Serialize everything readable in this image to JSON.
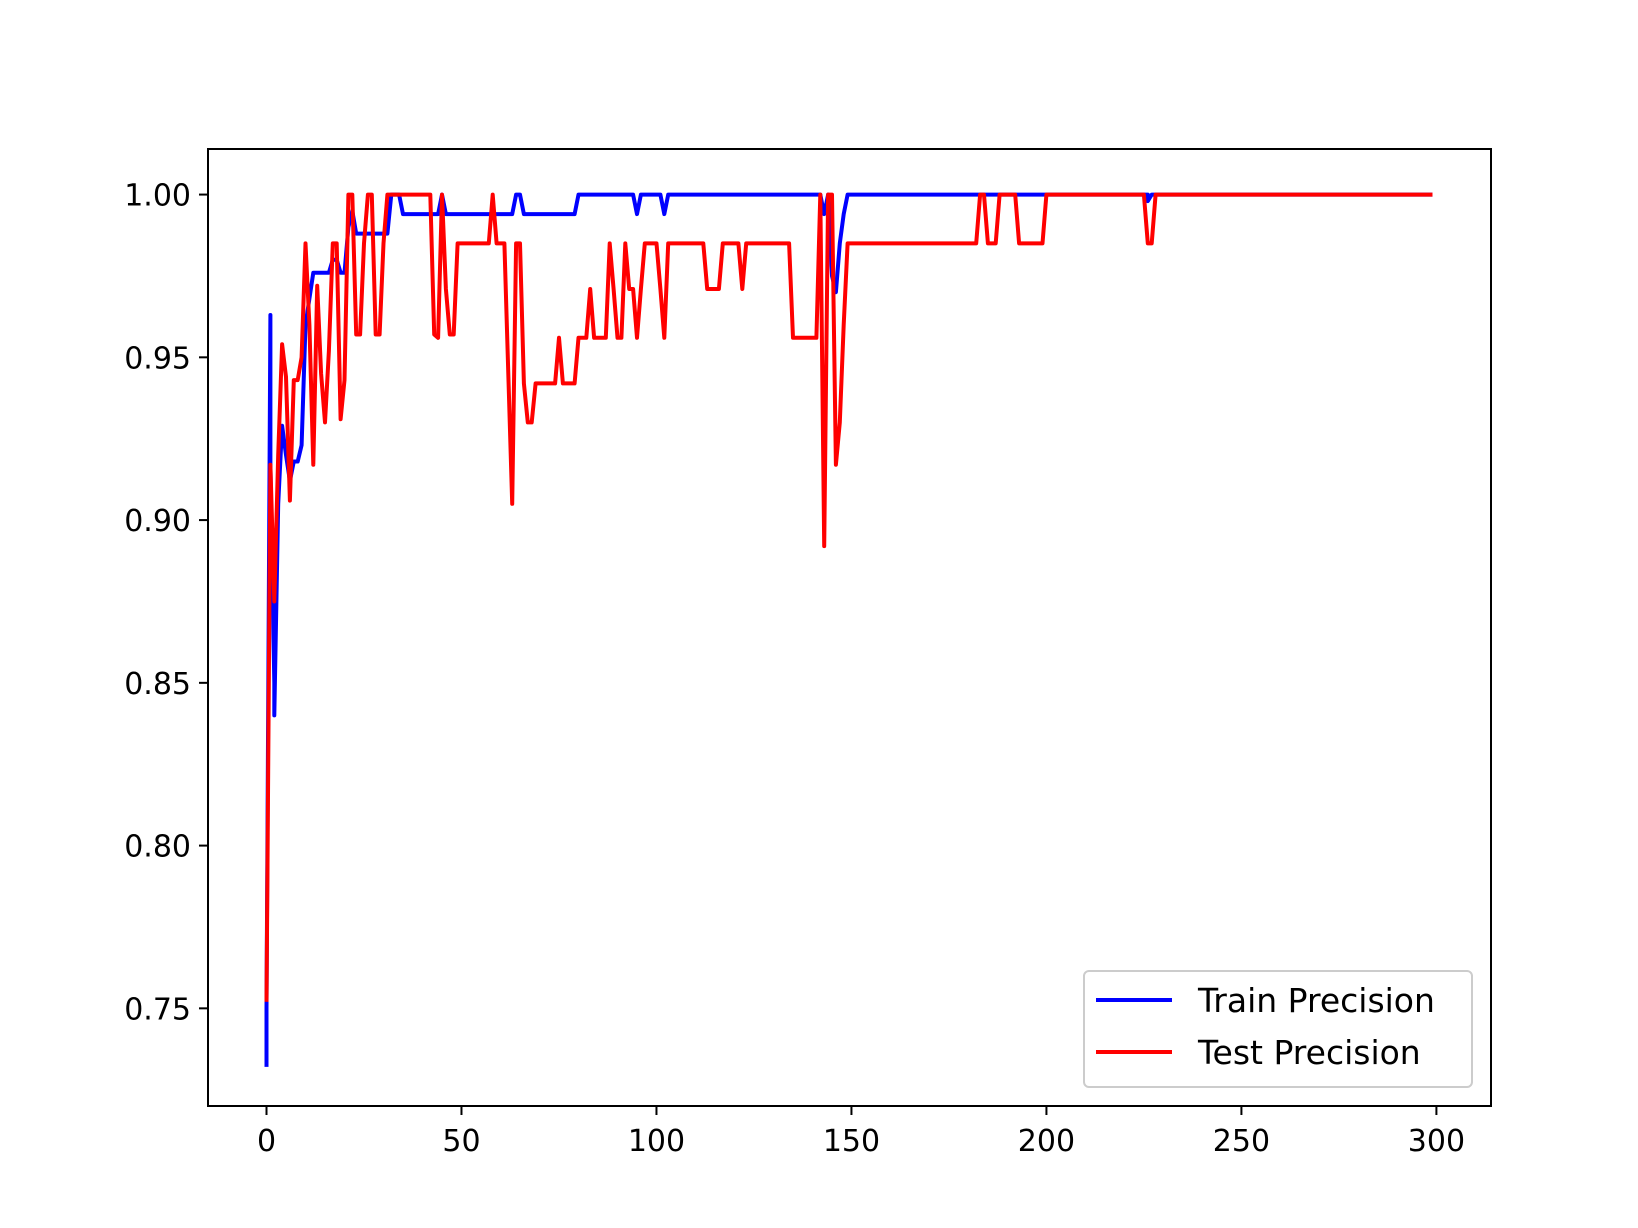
{
  "chart_data": {
    "type": "line",
    "title": "",
    "xlabel": "",
    "ylabel": "",
    "xlim": [
      -15,
      314
    ],
    "ylim": [
      0.72,
      1.014
    ],
    "grid": false,
    "legend_position": "bottom-right",
    "x_ticks": [
      0,
      50,
      100,
      150,
      200,
      250,
      300
    ],
    "x_tick_labels": [
      "0",
      "50",
      "100",
      "150",
      "200",
      "250",
      "300"
    ],
    "y_ticks": [
      0.75,
      0.8,
      0.85,
      0.9,
      0.95,
      1.0
    ],
    "y_tick_labels": [
      "0.75",
      "0.80",
      "0.85",
      "0.90",
      "0.95",
      "1.00"
    ],
    "series": [
      {
        "name": "Train Precision",
        "color": "#0000ff",
        "points": [
          [
            0,
            0.732
          ],
          [
            0,
            0.75
          ],
          [
            1,
            0.963
          ],
          [
            1,
            0.917
          ],
          [
            2,
            0.85
          ],
          [
            2,
            0.84
          ],
          [
            3,
            0.905
          ],
          [
            4,
            0.929
          ],
          [
            5,
            0.92
          ],
          [
            6,
            0.912
          ],
          [
            7,
            0.918
          ],
          [
            8,
            0.918
          ],
          [
            9,
            0.923
          ],
          [
            10,
            0.96
          ],
          [
            11,
            0.968
          ],
          [
            12,
            0.976
          ],
          [
            13,
            0.976
          ],
          [
            14,
            0.976
          ],
          [
            15,
            0.976
          ],
          [
            16,
            0.976
          ],
          [
            17,
            0.98
          ],
          [
            18,
            0.98
          ],
          [
            19,
            0.976
          ],
          [
            20,
            0.976
          ],
          [
            21,
            0.99
          ],
          [
            22,
            0.995
          ],
          [
            23,
            0.988
          ],
          [
            24,
            0.988
          ],
          [
            25,
            0.988
          ],
          [
            26,
            0.988
          ],
          [
            27,
            0.988
          ],
          [
            28,
            0.988
          ],
          [
            29,
            0.988
          ],
          [
            30,
            0.988
          ],
          [
            31,
            0.988
          ],
          [
            32,
            1.0
          ],
          [
            33,
            1.0
          ],
          [
            34,
            1.0
          ],
          [
            35,
            0.994
          ],
          [
            40,
            0.994
          ],
          [
            44,
            0.994
          ],
          [
            45,
            1.0
          ],
          [
            46,
            0.994
          ],
          [
            55,
            0.994
          ],
          [
            63,
            0.994
          ],
          [
            64,
            1.0
          ],
          [
            65,
            1.0
          ],
          [
            66,
            0.994
          ],
          [
            79,
            0.994
          ],
          [
            80,
            1.0
          ],
          [
            94,
            1.0
          ],
          [
            95,
            0.994
          ],
          [
            96,
            1.0
          ],
          [
            101,
            1.0
          ],
          [
            102,
            0.994
          ],
          [
            103,
            1.0
          ],
          [
            142,
            1.0
          ],
          [
            143,
            0.994
          ],
          [
            144,
            1.0
          ],
          [
            145,
            0.975
          ],
          [
            146,
            0.97
          ],
          [
            147,
            0.985
          ],
          [
            148,
            0.994
          ],
          [
            149,
            1.0
          ],
          [
            226,
            1.0
          ],
          [
            226,
            0.998
          ],
          [
            227,
            1.0
          ],
          [
            299,
            1.0
          ]
        ]
      },
      {
        "name": "Test Precision",
        "color": "#ff0000",
        "points": [
          [
            0,
            0.752
          ],
          [
            1,
            0.917
          ],
          [
            2,
            0.875
          ],
          [
            3,
            0.92
          ],
          [
            4,
            0.954
          ],
          [
            5,
            0.944
          ],
          [
            6,
            0.906
          ],
          [
            7,
            0.943
          ],
          [
            8,
            0.943
          ],
          [
            9,
            0.95
          ],
          [
            10,
            0.985
          ],
          [
            11,
            0.96
          ],
          [
            12,
            0.917
          ],
          [
            13,
            0.972
          ],
          [
            14,
            0.945
          ],
          [
            15,
            0.93
          ],
          [
            16,
            0.952
          ],
          [
            17,
            0.985
          ],
          [
            18,
            0.985
          ],
          [
            19,
            0.931
          ],
          [
            20,
            0.943
          ],
          [
            21,
            1.0
          ],
          [
            22,
            1.0
          ],
          [
            23,
            0.957
          ],
          [
            24,
            0.957
          ],
          [
            25,
            0.985
          ],
          [
            26,
            1.0
          ],
          [
            27,
            1.0
          ],
          [
            28,
            0.957
          ],
          [
            29,
            0.957
          ],
          [
            30,
            0.985
          ],
          [
            31,
            1.0
          ],
          [
            42,
            1.0
          ],
          [
            43,
            0.957
          ],
          [
            44,
            0.956
          ],
          [
            45,
            1.0
          ],
          [
            46,
            0.971
          ],
          [
            47,
            0.957
          ],
          [
            48,
            0.957
          ],
          [
            49,
            0.985
          ],
          [
            52,
            0.985
          ],
          [
            53,
            0.985
          ],
          [
            57,
            0.985
          ],
          [
            58,
            1.0
          ],
          [
            59,
            0.985
          ],
          [
            60,
            0.985
          ],
          [
            61,
            0.985
          ],
          [
            63,
            0.905
          ],
          [
            64,
            0.985
          ],
          [
            65,
            0.985
          ],
          [
            66,
            0.942
          ],
          [
            67,
            0.93
          ],
          [
            68,
            0.93
          ],
          [
            69,
            0.942
          ],
          [
            74,
            0.942
          ],
          [
            75,
            0.956
          ],
          [
            76,
            0.942
          ],
          [
            79,
            0.942
          ],
          [
            80,
            0.956
          ],
          [
            82,
            0.956
          ],
          [
            83,
            0.971
          ],
          [
            84,
            0.956
          ],
          [
            87,
            0.956
          ],
          [
            88,
            0.985
          ],
          [
            89,
            0.971
          ],
          [
            90,
            0.956
          ],
          [
            91,
            0.956
          ],
          [
            92,
            0.985
          ],
          [
            93,
            0.971
          ],
          [
            94,
            0.971
          ],
          [
            95,
            0.956
          ],
          [
            96,
            0.971
          ],
          [
            97,
            0.985
          ],
          [
            100,
            0.985
          ],
          [
            101,
            0.971
          ],
          [
            102,
            0.956
          ],
          [
            103,
            0.985
          ],
          [
            112,
            0.985
          ],
          [
            113,
            0.971
          ],
          [
            116,
            0.971
          ],
          [
            117,
            0.985
          ],
          [
            121,
            0.985
          ],
          [
            122,
            0.971
          ],
          [
            123,
            0.985
          ],
          [
            124,
            0.985
          ],
          [
            134,
            0.985
          ],
          [
            135,
            0.956
          ],
          [
            140,
            0.956
          ],
          [
            141,
            0.956
          ],
          [
            142,
            1.0
          ],
          [
            143,
            0.892
          ],
          [
            144,
            1.0
          ],
          [
            145,
            1.0
          ],
          [
            146,
            0.917
          ],
          [
            147,
            0.93
          ],
          [
            148,
            0.96
          ],
          [
            149,
            0.985
          ],
          [
            182,
            0.985
          ],
          [
            183,
            1.0
          ],
          [
            184,
            1.0
          ],
          [
            185,
            0.985
          ],
          [
            187,
            0.985
          ],
          [
            188,
            1.0
          ],
          [
            192,
            1.0
          ],
          [
            193,
            0.985
          ],
          [
            198,
            0.985
          ],
          [
            199,
            0.985
          ],
          [
            200,
            1.0
          ],
          [
            225,
            1.0
          ],
          [
            226,
            0.985
          ],
          [
            227,
            0.985
          ],
          [
            228,
            1.0
          ],
          [
            299,
            1.0
          ]
        ]
      }
    ]
  }
}
